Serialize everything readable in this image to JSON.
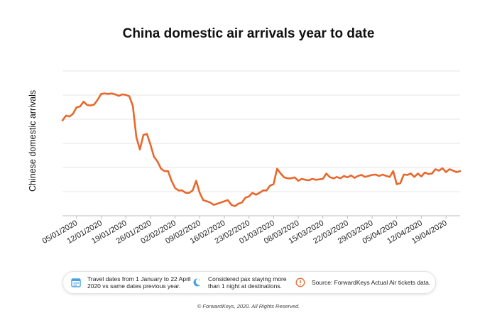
{
  "chart_data": {
    "type": "line",
    "title": "China domestic air arrivals year to date",
    "ylabel": "Chinese domestic arrivals",
    "xlabel": "",
    "grid": true,
    "x_tick_labels": [
      "05/01/2020",
      "12/01/2020",
      "19/01/2020",
      "26/01/2020",
      "02/02/2020",
      "09/02/2020",
      "16/02/2020",
      "23/02/2020",
      "01/03/2020",
      "08/03/2020",
      "15/03/2020",
      "22/03/2020",
      "29/03/2020",
      "05/04/2020",
      "12/04/2020",
      "19/04/2020"
    ],
    "x_start": "01/01/2020",
    "x_end": "22/04/2020",
    "ylim": [
      0,
      6
    ],
    "series": [
      {
        "name": "",
        "color": "#e8682c",
        "values": [
          3.4,
          3.6,
          3.56,
          3.68,
          3.94,
          3.98,
          4.18,
          4.04,
          4.02,
          4.06,
          4.26,
          4.5,
          4.52,
          4.5,
          4.52,
          4.48,
          4.42,
          4.48,
          4.46,
          4.4,
          4.0,
          2.7,
          2.2,
          2.8,
          2.84,
          2.4,
          1.9,
          1.7,
          1.4,
          1.3,
          1.3,
          0.9,
          0.6,
          0.5,
          0.5,
          0.4,
          0.4,
          0.5,
          0.9,
          0.4,
          0.1,
          0.05,
          0.0,
          -0.1,
          -0.05,
          0.0,
          0.05,
          0.1,
          -0.1,
          -0.15,
          -0.05,
          0.0,
          0.2,
          0.25,
          0.4,
          0.32,
          0.4,
          0.5,
          0.5,
          0.7,
          0.76,
          1.4,
          1.2,
          1.04,
          1.0,
          1.0,
          1.04,
          0.9,
          0.98,
          0.94,
          0.92,
          0.98,
          0.94,
          0.96,
          0.98,
          1.2,
          1.05,
          1.0,
          1.06,
          1.0,
          1.1,
          1.04,
          1.12,
          1.02,
          1.1,
          1.14,
          1.06,
          1.1,
          1.14,
          1.16,
          1.1,
          1.16,
          1.1,
          1.06,
          1.3,
          0.76,
          0.8,
          1.16,
          1.14,
          1.2,
          1.06,
          1.2,
          1.08,
          1.24,
          1.18,
          1.2,
          1.38,
          1.32,
          1.42,
          1.26,
          1.38,
          1.32,
          1.26,
          1.3
        ]
      }
    ]
  },
  "legend_items": [
    {
      "icon": "calendar-icon",
      "color": "#4aa3df",
      "text_line1": "Travel dates from 1 January to 22 April",
      "text_line2": "2020 vs same dates previous year."
    },
    {
      "icon": "moon-icon",
      "color": "#4aa3df",
      "text_line1": "Considered pax staying more",
      "text_line2": "than 1 night at destinations."
    },
    {
      "icon": "info-icon",
      "color": "#e8682c",
      "text_line1": "Source: ForwardKeys Actual Air tickets data.",
      "text_line2": ""
    }
  ],
  "copyright": "© ForwardKeys, 2020. All Rights Reserved."
}
